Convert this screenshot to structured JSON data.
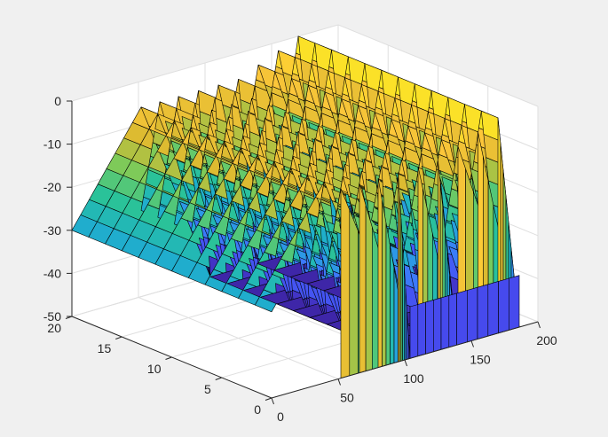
{
  "chart_data": {
    "type": "surface",
    "title": "",
    "xlabel": "",
    "ylabel": "",
    "zlabel": "",
    "x_ticks": [
      "0",
      "50",
      "100",
      "150",
      "200"
    ],
    "y_ticks": [
      "0",
      "5",
      "10",
      "15",
      "20"
    ],
    "z_ticks": [
      "0",
      "-10",
      "-20",
      "-30",
      "-40",
      "-50"
    ],
    "xlim": [
      0,
      200
    ],
    "ylim": [
      0,
      20
    ],
    "zlim": [
      -50,
      0
    ],
    "grid": true,
    "colormap": "parula",
    "colormap_stops": [
      "#3e26a8",
      "#4746eb",
      "#3f72ff",
      "#2e96e8",
      "#1eb0c9",
      "#2bc396",
      "#7bcb5a",
      "#d9ba30",
      "#fcc63a",
      "#f9fb15"
    ],
    "edge_color": "#000000",
    "ridges": [
      {
        "x_start": 0,
        "x_peak": 52,
        "x_end": 104,
        "peak_z": -6
      },
      {
        "x_start": 52,
        "x_peak": 66,
        "x_end": 104,
        "peak_z": -6
      },
      {
        "x_start": 66,
        "x_peak": 80,
        "x_end": 104,
        "peak_z": -6
      },
      {
        "x_start": 80,
        "x_peak": 95,
        "x_end": 104,
        "peak_z": -6
      },
      {
        "x_start": 95,
        "x_peak": 110,
        "x_end": 139,
        "peak_z": -6
      },
      {
        "x_start": 110,
        "x_peak": 125,
        "x_end": 139,
        "peak_z": -6
      },
      {
        "x_start": 125,
        "x_peak": 140,
        "x_end": 186,
        "peak_z": -4
      },
      {
        "x_start": 140,
        "x_peak": 155,
        "x_end": 186,
        "peak_z": -2
      },
      {
        "x_start": 155,
        "x_peak": 170,
        "x_end": 186,
        "peak_z": 0
      }
    ],
    "floor_steps": [
      {
        "x_start": 104,
        "x_end": 139,
        "z": -50
      },
      {
        "x_start": 139,
        "x_end": 186,
        "z": -50
      }
    ]
  }
}
